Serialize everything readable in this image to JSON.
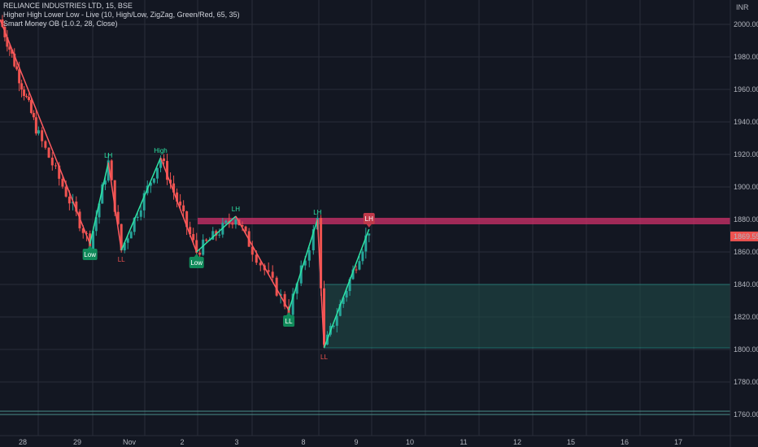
{
  "legend": {
    "line1": "RELIANCE INDUSTRIES LTD, 15, BSE",
    "line2": "Higher High Lower Low - Live (10, High/Low, ZigZag, Green/Red, 65, 35)",
    "line3": "Smart Money OB (1.0.2, 28, Close)"
  },
  "colors": {
    "background": "#131722",
    "grid": "#2a2e39",
    "bull": "#26a69a",
    "bear": "#ef5350",
    "zigzag_up": "#2ee6a6",
    "zigzag_down": "#ff5a5f",
    "resistance_zone": "#d0306a",
    "demand_zone": "#1f4a47",
    "label_green": "#108a5a",
    "label_red": "#c0394a"
  },
  "chart_data": {
    "type": "candlestick",
    "title": "RELIANCE INDUSTRIES LTD, 15, BSE",
    "currency": "INR",
    "ylim": [
      1747,
      2015
    ],
    "y_ticks": [
      2000,
      1980,
      1960,
      1940,
      1920,
      1900,
      1880,
      1860,
      1840,
      1820,
      1800,
      1780,
      1760
    ],
    "y_tick_labels": [
      "2000.00",
      "1980.00",
      "1960.00",
      "1940.00",
      "1920.00",
      "1900.00",
      "1880.00",
      "1860.00",
      "1840.00",
      "1820.00",
      "1800.00",
      "1780.00",
      "1760.00"
    ],
    "x_tick_labels": [
      "28",
      "29",
      "Nov",
      "2",
      "3",
      "8",
      "9",
      "10",
      "11",
      "12",
      "15",
      "16",
      "17"
    ],
    "last_price": 1869.55,
    "last_price_label": "1869.55",
    "zigzag": [
      {
        "session": 0.0,
        "price": 2003
      },
      {
        "session": 1.95,
        "price": 1865
      },
      {
        "session": 2.3,
        "price": 1915
      },
      {
        "session": 2.55,
        "price": 1861
      },
      {
        "session": 3.3,
        "price": 1918
      },
      {
        "session": 3.98,
        "price": 1860
      },
      {
        "session": 4.7,
        "price": 1882
      },
      {
        "session": 5.55,
        "price": 1824
      },
      {
        "session": 5.98,
        "price": 1880
      },
      {
        "session": 6.1,
        "price": 1801
      },
      {
        "session": 6.95,
        "price": 1874
      }
    ],
    "pivot_labels": [
      {
        "text": "Low",
        "session": 1.95,
        "price": 1865,
        "kind": "box",
        "tone": "green",
        "pos": "below"
      },
      {
        "text": "LH",
        "session": 2.3,
        "price": 1915,
        "kind": "text",
        "tone": "green",
        "pos": "above"
      },
      {
        "text": "LL",
        "session": 2.55,
        "price": 1861,
        "kind": "text",
        "tone": "red",
        "pos": "below"
      },
      {
        "text": "High",
        "session": 3.3,
        "price": 1918,
        "kind": "text",
        "tone": "green",
        "pos": "above"
      },
      {
        "text": "Low",
        "session": 3.98,
        "price": 1860,
        "kind": "box",
        "tone": "green",
        "pos": "below"
      },
      {
        "text": "LH",
        "session": 4.7,
        "price": 1882,
        "kind": "text",
        "tone": "green",
        "pos": "above"
      },
      {
        "text": "LL",
        "session": 5.55,
        "price": 1824,
        "kind": "box",
        "tone": "green",
        "pos": "below"
      },
      {
        "text": "LH",
        "session": 5.98,
        "price": 1880,
        "kind": "text",
        "tone": "green",
        "pos": "above"
      },
      {
        "text": "LL",
        "session": 6.1,
        "price": 1801,
        "kind": "text",
        "tone": "red",
        "pos": "below"
      },
      {
        "text": "LH",
        "session": 6.95,
        "price": 1874,
        "kind": "box",
        "tone": "red",
        "pos": "above"
      }
    ],
    "zones": [
      {
        "name": "resistance",
        "from_session": 4.0,
        "y_top": 1881,
        "y_bottom": 1877
      },
      {
        "name": "demand",
        "from_session": 6.1,
        "y_top": 1840,
        "y_bottom": 1801
      }
    ],
    "horizontal_lines": [
      1762,
      1760
    ]
  }
}
